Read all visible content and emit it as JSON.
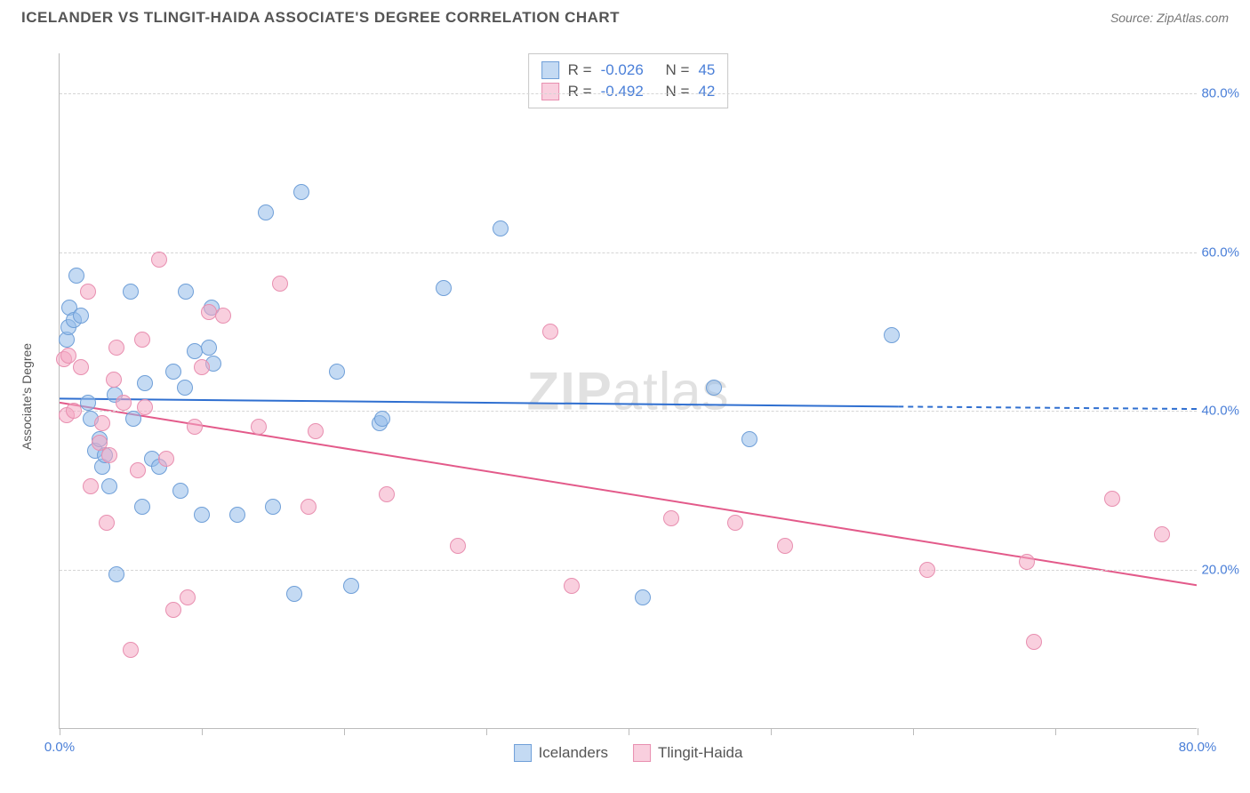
{
  "title": "ICELANDER VS TLINGIT-HAIDA ASSOCIATE'S DEGREE CORRELATION CHART",
  "source": "Source: ZipAtlas.com",
  "watermark": {
    "bold": "ZIP",
    "rest": "atlas"
  },
  "chart": {
    "type": "scatter",
    "y_axis_title": "Associate's Degree",
    "background_color": "#ffffff",
    "grid_color": "#d5d5d5",
    "axis_color": "#bbbbbb",
    "tick_label_color": "#4a7fd8",
    "xlim": [
      0,
      80
    ],
    "ylim": [
      0,
      85
    ],
    "yticks": [
      20,
      40,
      60,
      80
    ],
    "ytick_labels": [
      "20.0%",
      "40.0%",
      "60.0%",
      "80.0%"
    ],
    "xticks": [
      0,
      10,
      20,
      30,
      40,
      50,
      60,
      70,
      80
    ],
    "xtick_labels": {
      "0": "0.0%",
      "80": "80.0%"
    },
    "marker_radius": 9,
    "marker_border_width": 1.4,
    "trend_line_width": 2,
    "series": [
      {
        "key": "icelanders",
        "label": "Icelanders",
        "fill_color": "rgba(148,187,233,0.55)",
        "stroke_color": "#6f9fd8",
        "line_color": "#2f6fd0",
        "stats": {
          "R": "-0.026",
          "N": "45"
        },
        "trend": {
          "x1": 0,
          "y1": 41.5,
          "x2": 59,
          "y2": 40.5,
          "dash_x2": 80,
          "dash_y2": 40.2
        },
        "points": [
          [
            0.5,
            49
          ],
          [
            0.6,
            50.5
          ],
          [
            0.7,
            53
          ],
          [
            1.0,
            51.5
          ],
          [
            1.2,
            57
          ],
          [
            1.5,
            52
          ],
          [
            2.0,
            41
          ],
          [
            2.2,
            39
          ],
          [
            2.5,
            35
          ],
          [
            2.8,
            36.5
          ],
          [
            3.0,
            33
          ],
          [
            3.2,
            34.5
          ],
          [
            3.5,
            30.5
          ],
          [
            3.9,
            42
          ],
          [
            4.0,
            19.5
          ],
          [
            5.0,
            55
          ],
          [
            5.2,
            39
          ],
          [
            5.8,
            28
          ],
          [
            6.0,
            43.5
          ],
          [
            6.5,
            34
          ],
          [
            7.0,
            33
          ],
          [
            8.0,
            45
          ],
          [
            8.5,
            30
          ],
          [
            8.8,
            43
          ],
          [
            8.9,
            55
          ],
          [
            9.5,
            47.5
          ],
          [
            10.0,
            27
          ],
          [
            10.5,
            48
          ],
          [
            10.7,
            53
          ],
          [
            10.8,
            46
          ],
          [
            12.5,
            27
          ],
          [
            14.5,
            65
          ],
          [
            15.0,
            28
          ],
          [
            16.5,
            17
          ],
          [
            17.0,
            67.5
          ],
          [
            19.5,
            45
          ],
          [
            20.5,
            18
          ],
          [
            22.5,
            38.5
          ],
          [
            22.7,
            39
          ],
          [
            27.0,
            55.5
          ],
          [
            31.0,
            63
          ],
          [
            41.0,
            16.5
          ],
          [
            46.0,
            43
          ],
          [
            48.5,
            36.5
          ],
          [
            58.5,
            49.5
          ]
        ]
      },
      {
        "key": "tlingit_haida",
        "label": "Tlingit-Haida",
        "fill_color": "rgba(244,168,195,0.55)",
        "stroke_color": "#e88fb0",
        "line_color": "#e35a8a",
        "stats": {
          "R": "-0.492",
          "N": "42"
        },
        "trend": {
          "x1": 0,
          "y1": 41.0,
          "x2": 80,
          "y2": 18.0
        },
        "points": [
          [
            0.3,
            46.5
          ],
          [
            0.5,
            39.5
          ],
          [
            0.6,
            47
          ],
          [
            1.0,
            40
          ],
          [
            1.5,
            45.5
          ],
          [
            2.0,
            55
          ],
          [
            2.2,
            30.5
          ],
          [
            2.8,
            36
          ],
          [
            3.0,
            38.5
          ],
          [
            3.3,
            26
          ],
          [
            3.5,
            34.5
          ],
          [
            3.8,
            44
          ],
          [
            4.0,
            48
          ],
          [
            4.5,
            41
          ],
          [
            5.0,
            10
          ],
          [
            5.5,
            32.5
          ],
          [
            5.8,
            49
          ],
          [
            6.0,
            40.5
          ],
          [
            7.0,
            59
          ],
          [
            7.5,
            34
          ],
          [
            8.0,
            15
          ],
          [
            9.0,
            16.5
          ],
          [
            9.5,
            38
          ],
          [
            10.0,
            45.5
          ],
          [
            10.5,
            52.5
          ],
          [
            11.5,
            52
          ],
          [
            14.0,
            38
          ],
          [
            15.5,
            56
          ],
          [
            17.5,
            28
          ],
          [
            18.0,
            37.5
          ],
          [
            23.0,
            29.5
          ],
          [
            28.0,
            23
          ],
          [
            34.5,
            50
          ],
          [
            36.0,
            18
          ],
          [
            43.0,
            26.5
          ],
          [
            47.5,
            26
          ],
          [
            51.0,
            23
          ],
          [
            68.0,
            21
          ],
          [
            68.5,
            11
          ],
          [
            74.0,
            29
          ],
          [
            77.5,
            24.5
          ],
          [
            61.0,
            20
          ]
        ]
      }
    ]
  },
  "stat_legend_labels": {
    "R": "R =",
    "N": "N ="
  },
  "bottom_legend": [
    "Icelanders",
    "Tlingit-Haida"
  ]
}
